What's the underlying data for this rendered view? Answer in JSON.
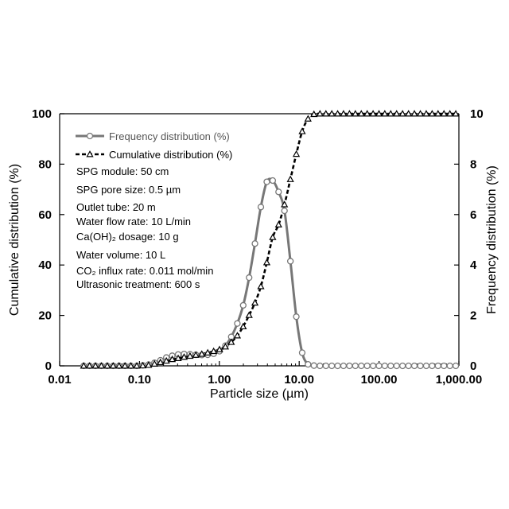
{
  "chart_data": {
    "type": "line",
    "x_scale": "log",
    "xlim": [
      0.01,
      1000
    ],
    "ylim_left": [
      0,
      100
    ],
    "ylim_right": [
      0,
      10
    ],
    "xlabel": "Particle size (µm)",
    "ylabel_left": "Cumulative distribution (%)",
    "ylabel_right": "Frequency distribution (%)",
    "x_ticks": [
      0.01,
      0.1,
      1,
      10,
      100,
      1000
    ],
    "x_tick_labels": [
      "0.01",
      "0.10",
      "1.00",
      "10.00",
      "100.00",
      "1,000.00"
    ],
    "y_ticks_left": [
      0,
      20,
      40,
      60,
      80,
      100
    ],
    "y_tick_labels_left": [
      "0",
      "20",
      "40",
      "60",
      "80",
      "100"
    ],
    "y_ticks_right": [
      0,
      2,
      4,
      6,
      8,
      10
    ],
    "y_tick_labels_right": [
      "0",
      "2",
      "4",
      "6",
      "8",
      "10"
    ],
    "legend_position": "top-left",
    "series": [
      {
        "name": "Frequency distribution (%)",
        "axis": "right",
        "marker": "circle",
        "line": "solid",
        "color": "#777777",
        "x": [
          0.02,
          0.0237,
          0.0281,
          0.0333,
          0.0395,
          0.0468,
          0.0555,
          0.0658,
          0.078,
          0.0925,
          0.11,
          0.13,
          0.154,
          0.183,
          0.217,
          0.257,
          0.305,
          0.362,
          0.429,
          0.508,
          0.603,
          0.715,
          0.848,
          1.005,
          1.19,
          1.41,
          1.68,
          1.99,
          2.36,
          2.79,
          3.31,
          3.93,
          4.66,
          5.52,
          6.54,
          7.76,
          9.2,
          10.9,
          12.9,
          15.3,
          18.2,
          21.6,
          25.6,
          30.3,
          35.9,
          42.6,
          50.5,
          59.9,
          71.0,
          84.2,
          99.8,
          118,
          140,
          166,
          197,
          234,
          277,
          329,
          390,
          462,
          548,
          650,
          771,
          914
        ],
        "values": [
          0,
          0,
          0,
          0,
          0,
          0,
          0,
          0,
          0,
          0,
          0.02,
          0.05,
          0.12,
          0.22,
          0.33,
          0.4,
          0.45,
          0.47,
          0.46,
          0.44,
          0.43,
          0.44,
          0.48,
          0.58,
          0.8,
          1.15,
          1.68,
          2.4,
          3.5,
          4.85,
          6.3,
          7.3,
          7.35,
          6.9,
          6.15,
          4.15,
          1.95,
          0.52,
          0.06,
          0.01,
          0,
          0,
          0,
          0,
          0,
          0,
          0,
          0,
          0,
          0,
          0,
          0,
          0,
          0,
          0,
          0,
          0,
          0,
          0,
          0,
          0,
          0,
          0,
          0
        ]
      },
      {
        "name": "Cumulative distribution (%)",
        "axis": "left",
        "marker": "triangle",
        "line": "dashed",
        "color": "#000000",
        "x": [
          0.02,
          0.0237,
          0.0281,
          0.0333,
          0.0395,
          0.0468,
          0.0555,
          0.0658,
          0.078,
          0.0925,
          0.11,
          0.13,
          0.154,
          0.183,
          0.217,
          0.257,
          0.305,
          0.362,
          0.429,
          0.508,
          0.603,
          0.715,
          0.848,
          1.005,
          1.19,
          1.41,
          1.68,
          1.99,
          2.36,
          2.79,
          3.31,
          3.93,
          4.66,
          5.52,
          6.54,
          7.76,
          9.2,
          10.9,
          12.9,
          15.3,
          18.2,
          21.6,
          25.6,
          30.3,
          35.9,
          42.6,
          50.5,
          59.9,
          71.0,
          84.2,
          99.8,
          118,
          140,
          166,
          197,
          234,
          277,
          329,
          390,
          462,
          548,
          650,
          771,
          914
        ],
        "values": [
          0,
          0,
          0,
          0,
          0,
          0,
          0,
          0,
          0,
          0,
          0.1,
          0.3,
          0.8,
          1.4,
          2.0,
          2.6,
          3.0,
          3.5,
          3.9,
          4.3,
          4.7,
          5.2,
          5.8,
          6.5,
          7.6,
          9.4,
          12.0,
          15.6,
          20.1,
          25.0,
          31.5,
          41.0,
          51.0,
          56.0,
          64.0,
          74.0,
          84.0,
          93.0,
          98.0,
          99.8,
          100,
          100,
          100,
          100,
          100,
          100,
          100,
          100,
          100,
          100,
          100,
          100,
          100,
          100,
          100,
          100,
          100,
          100,
          100,
          100,
          100,
          100,
          100,
          100
        ]
      }
    ],
    "annotations": [
      "SPG module: 50 cm",
      "SPG pore size: 0.5 µm",
      "Outlet tube: 20 m",
      "Water flow rate: 10 L/min",
      "Ca(OH)₂ dosage: 10 g",
      "Water volume: 10 L",
      "CO₂ influx rate: 0.011 mol/min",
      "Ultrasonic treatment: 600 s"
    ]
  }
}
